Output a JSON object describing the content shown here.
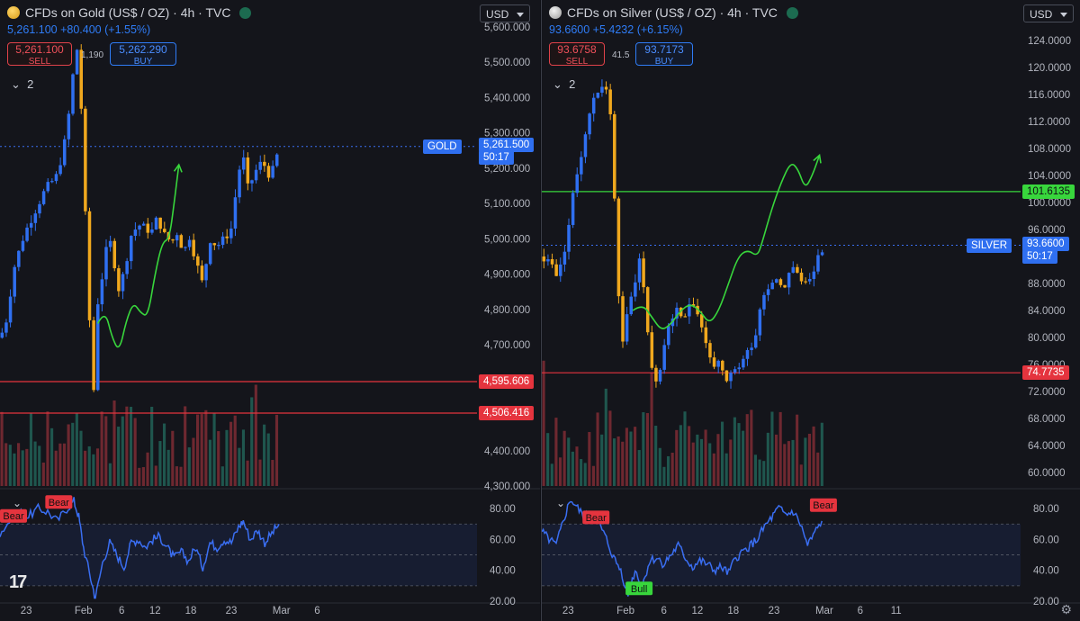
{
  "colors": {
    "bull": "#2f6ff0",
    "bear": "#f0a81e",
    "rsi": "#3a6ef2",
    "bg": "#14151b",
    "hline": "#e5343e",
    "projection": "#38d63c",
    "grid": "#23252e"
  },
  "chart_data": [
    {
      "type": "candlestick",
      "title": "CFDs on Gold (US$ / OZ) · 4h · TVC",
      "symbol": "GOLD",
      "currency": "USD",
      "quote": {
        "last": "5,261.100",
        "change": "+80.400",
        "change_pct": "(+1.55%)"
      },
      "sell": {
        "price": "5,261.100",
        "label": "SELL"
      },
      "buy": {
        "price": "5,262.290",
        "label": "BUY"
      },
      "spread": "1,190",
      "legend_toggle": "2",
      "ylim": [
        4300,
        5600
      ],
      "y_ticks": [
        "5,600.000",
        "5,500.000",
        "5,400.000",
        "5,300.000",
        "5,200.000",
        "5,100.000",
        "5,000.000",
        "4,900.000",
        "4,800.000",
        "4,700.000",
        "4,400.000",
        "4,300.000"
      ],
      "y_tick_values": [
        5600,
        5500,
        5400,
        5300,
        5200,
        5100,
        5000,
        4900,
        4800,
        4700,
        4400,
        4300
      ],
      "x_ticks": [
        "23",
        "Feb",
        "6",
        "12",
        "18",
        "23",
        "Mar",
        "6"
      ],
      "x_tick_values": [
        0.055,
        0.175,
        0.255,
        0.325,
        0.4,
        0.485,
        0.59,
        0.665
      ],
      "last_price": {
        "label": "GOLD",
        "value": "5,261.500",
        "countdown": "50:17",
        "y": 5261.5
      },
      "horizontal_lines": [
        {
          "label": "4,595.606",
          "y": 4595.606,
          "color": "#e5343e"
        },
        {
          "label": "4,506.416",
          "y": 4506.416,
          "color": "#e5343e"
        }
      ],
      "price_path": [
        [
          0,
          4720
        ],
        [
          0.012,
          4760
        ],
        [
          0.03,
          4920
        ],
        [
          0.05,
          5010
        ],
        [
          0.07,
          5070
        ],
        [
          0.095,
          5140
        ],
        [
          0.12,
          5180
        ],
        [
          0.14,
          5300
        ],
        [
          0.155,
          5490
        ],
        [
          0.162,
          5540
        ],
        [
          0.17,
          5380
        ],
        [
          0.178,
          5100
        ],
        [
          0.188,
          4760
        ],
        [
          0.196,
          4560
        ],
        [
          0.205,
          4820
        ],
        [
          0.215,
          4900
        ],
        [
          0.228,
          5010
        ],
        [
          0.24,
          4930
        ],
        [
          0.25,
          4850
        ],
        [
          0.262,
          4920
        ],
        [
          0.275,
          5010
        ],
        [
          0.29,
          5040
        ],
        [
          0.305,
          5030
        ],
        [
          0.318,
          5020
        ],
        [
          0.33,
          5060
        ],
        [
          0.345,
          5010
        ],
        [
          0.36,
          4990
        ],
        [
          0.372,
          5020
        ],
        [
          0.385,
          4960
        ],
        [
          0.398,
          5010
        ],
        [
          0.41,
          4940
        ],
        [
          0.425,
          4870
        ],
        [
          0.44,
          5000
        ],
        [
          0.455,
          4980
        ],
        [
          0.47,
          5000
        ],
        [
          0.485,
          5030
        ],
        [
          0.5,
          5190
        ],
        [
          0.51,
          5230
        ],
        [
          0.52,
          5140
        ],
        [
          0.535,
          5190
        ],
        [
          0.55,
          5220
        ],
        [
          0.565,
          5180
        ],
        [
          0.575,
          5200
        ],
        [
          0.585,
          5261
        ]
      ],
      "projection_path": [
        [
          0.205,
          4760
        ],
        [
          0.22,
          4800
        ],
        [
          0.235,
          4720
        ],
        [
          0.25,
          4680
        ],
        [
          0.265,
          4770
        ],
        [
          0.28,
          4820
        ],
        [
          0.295,
          4790
        ],
        [
          0.31,
          4780
        ],
        [
          0.325,
          4900
        ],
        [
          0.34,
          4990
        ],
        [
          0.355,
          5000
        ],
        [
          0.365,
          5100
        ],
        [
          0.375,
          5210
        ]
      ],
      "rsi": {
        "ylim": [
          20,
          90
        ],
        "y_ticks": [
          "80.00",
          "60.00",
          "40.00",
          "20.00"
        ],
        "y_tick_values": [
          80,
          60,
          40,
          20
        ],
        "band": [
          30,
          70
        ],
        "path": [
          [
            0,
            64
          ],
          [
            0.02,
            72
          ],
          [
            0.04,
            78
          ],
          [
            0.06,
            75
          ],
          [
            0.08,
            80
          ],
          [
            0.1,
            78
          ],
          [
            0.12,
            72
          ],
          [
            0.14,
            80
          ],
          [
            0.155,
            85
          ],
          [
            0.165,
            75
          ],
          [
            0.175,
            55
          ],
          [
            0.19,
            35
          ],
          [
            0.2,
            22
          ],
          [
            0.215,
            45
          ],
          [
            0.23,
            58
          ],
          [
            0.245,
            50
          ],
          [
            0.26,
            42
          ],
          [
            0.275,
            58
          ],
          [
            0.29,
            60
          ],
          [
            0.305,
            55
          ],
          [
            0.32,
            60
          ],
          [
            0.335,
            62
          ],
          [
            0.35,
            55
          ],
          [
            0.365,
            48
          ],
          [
            0.38,
            52
          ],
          [
            0.395,
            46
          ],
          [
            0.41,
            55
          ],
          [
            0.425,
            42
          ],
          [
            0.44,
            58
          ],
          [
            0.455,
            55
          ],
          [
            0.47,
            60
          ],
          [
            0.485,
            58
          ],
          [
            0.5,
            68
          ],
          [
            0.51,
            72
          ],
          [
            0.525,
            60
          ],
          [
            0.54,
            66
          ],
          [
            0.555,
            58
          ],
          [
            0.57,
            64
          ],
          [
            0.585,
            70
          ]
        ],
        "labels": [
          {
            "text": "Bear",
            "x": 0.0,
            "y": 75,
            "color": "#e5343e"
          },
          {
            "text": "Bear",
            "x": 0.095,
            "y": 84,
            "color": "#e5343e"
          }
        ]
      }
    },
    {
      "type": "candlestick",
      "title": "CFDs on Silver (US$ / OZ) · 4h · TVC",
      "symbol": "SILVER",
      "currency": "USD",
      "quote": {
        "last": "93.6600",
        "change": "+5.4232",
        "change_pct": "(+6.15%)"
      },
      "sell": {
        "price": "93.6758",
        "label": "SELL"
      },
      "buy": {
        "price": "93.7173",
        "label": "BUY"
      },
      "spread": "41.5",
      "legend_toggle": "2",
      "ylim": [
        58,
        126
      ],
      "y_ticks": [
        "124.0000",
        "120.0000",
        "116.0000",
        "112.0000",
        "108.0000",
        "104.0000",
        "100.0000",
        "96.0000",
        "88.0000",
        "84.0000",
        "80.0000",
        "76.0000",
        "72.0000",
        "68.0000",
        "64.0000",
        "60.0000"
      ],
      "y_tick_values": [
        124,
        120,
        116,
        112,
        108,
        104,
        100,
        96,
        88,
        84,
        80,
        76,
        72,
        68,
        64,
        60
      ],
      "x_ticks": [
        "23",
        "Feb",
        "6",
        "12",
        "18",
        "23",
        "Mar",
        "6",
        "11"
      ],
      "x_tick_values": [
        0.055,
        0.175,
        0.255,
        0.325,
        0.4,
        0.485,
        0.59,
        0.665,
        0.74
      ],
      "last_price": {
        "label": "SILVER",
        "value": "93.6600",
        "countdown": "50:17",
        "y": 93.66
      },
      "horizontal_lines": [
        {
          "label": "101.6135",
          "y": 101.6135,
          "color": "#38d63c"
        },
        {
          "label": "74.7735",
          "y": 74.7735,
          "color": "#e5343e"
        }
      ],
      "price_path": [
        [
          0,
          92
        ],
        [
          0.02,
          91
        ],
        [
          0.035,
          89
        ],
        [
          0.05,
          94
        ],
        [
          0.07,
          103
        ],
        [
          0.09,
          110
        ],
        [
          0.11,
          116
        ],
        [
          0.13,
          118
        ],
        [
          0.145,
          112
        ],
        [
          0.155,
          96
        ],
        [
          0.165,
          78
        ],
        [
          0.175,
          82
        ],
        [
          0.19,
          87
        ],
        [
          0.205,
          92
        ],
        [
          0.215,
          86
        ],
        [
          0.225,
          78
        ],
        [
          0.235,
          73
        ],
        [
          0.25,
          76
        ],
        [
          0.265,
          82
        ],
        [
          0.28,
          84
        ],
        [
          0.295,
          82
        ],
        [
          0.31,
          86
        ],
        [
          0.325,
          84
        ],
        [
          0.34,
          80
        ],
        [
          0.355,
          76
        ],
        [
          0.37,
          76
        ],
        [
          0.385,
          73
        ],
        [
          0.4,
          75
        ],
        [
          0.415,
          76
        ],
        [
          0.43,
          78
        ],
        [
          0.445,
          80
        ],
        [
          0.46,
          86
        ],
        [
          0.475,
          88
        ],
        [
          0.49,
          89
        ],
        [
          0.505,
          87
        ],
        [
          0.52,
          91
        ],
        [
          0.535,
          89
        ],
        [
          0.55,
          88
        ],
        [
          0.565,
          90
        ],
        [
          0.58,
          92
        ],
        [
          0.59,
          93.66
        ]
      ],
      "projection_path": [
        [
          0.19,
          84
        ],
        [
          0.21,
          85
        ],
        [
          0.23,
          83
        ],
        [
          0.25,
          81
        ],
        [
          0.27,
          82
        ],
        [
          0.29,
          84
        ],
        [
          0.31,
          85
        ],
        [
          0.33,
          84
        ],
        [
          0.35,
          82
        ],
        [
          0.37,
          84
        ],
        [
          0.39,
          88
        ],
        [
          0.41,
          92
        ],
        [
          0.43,
          93
        ],
        [
          0.45,
          92
        ],
        [
          0.46,
          94
        ],
        [
          0.48,
          99
        ],
        [
          0.5,
          103
        ],
        [
          0.52,
          106
        ],
        [
          0.535,
          105
        ],
        [
          0.55,
          102
        ],
        [
          0.565,
          104
        ],
        [
          0.58,
          107
        ]
      ],
      "rsi": {
        "ylim": [
          20,
          90
        ],
        "y_ticks": [
          "80.00",
          "60.00",
          "40.00",
          "20.00"
        ],
        "y_tick_values": [
          80,
          60,
          40,
          20
        ],
        "band": [
          30,
          70
        ],
        "path": [
          [
            0,
            65
          ],
          [
            0.015,
            60
          ],
          [
            0.03,
            56
          ],
          [
            0.045,
            72
          ],
          [
            0.06,
            86
          ],
          [
            0.075,
            80
          ],
          [
            0.09,
            74
          ],
          [
            0.105,
            78
          ],
          [
            0.12,
            70
          ],
          [
            0.135,
            60
          ],
          [
            0.15,
            48
          ],
          [
            0.165,
            40
          ],
          [
            0.18,
            24
          ],
          [
            0.195,
            40
          ],
          [
            0.21,
            30
          ],
          [
            0.225,
            46
          ],
          [
            0.24,
            48
          ],
          [
            0.255,
            44
          ],
          [
            0.27,
            50
          ],
          [
            0.285,
            56
          ],
          [
            0.3,
            48
          ],
          [
            0.315,
            42
          ],
          [
            0.33,
            46
          ],
          [
            0.345,
            44
          ],
          [
            0.36,
            40
          ],
          [
            0.375,
            42
          ],
          [
            0.39,
            38
          ],
          [
            0.405,
            48
          ],
          [
            0.42,
            52
          ],
          [
            0.435,
            56
          ],
          [
            0.45,
            60
          ],
          [
            0.465,
            68
          ],
          [
            0.48,
            74
          ],
          [
            0.495,
            80
          ],
          [
            0.51,
            76
          ],
          [
            0.525,
            78
          ],
          [
            0.54,
            70
          ],
          [
            0.555,
            56
          ],
          [
            0.57,
            64
          ],
          [
            0.585,
            72
          ]
        ],
        "labels": [
          {
            "text": "Bear",
            "x": 0.085,
            "y": 74,
            "color": "#e5343e"
          },
          {
            "text": "Bull",
            "x": 0.175,
            "y": 28,
            "color": "#38d63c"
          },
          {
            "text": "Bear",
            "x": 0.56,
            "y": 82,
            "color": "#e5343e"
          }
        ]
      }
    }
  ]
}
